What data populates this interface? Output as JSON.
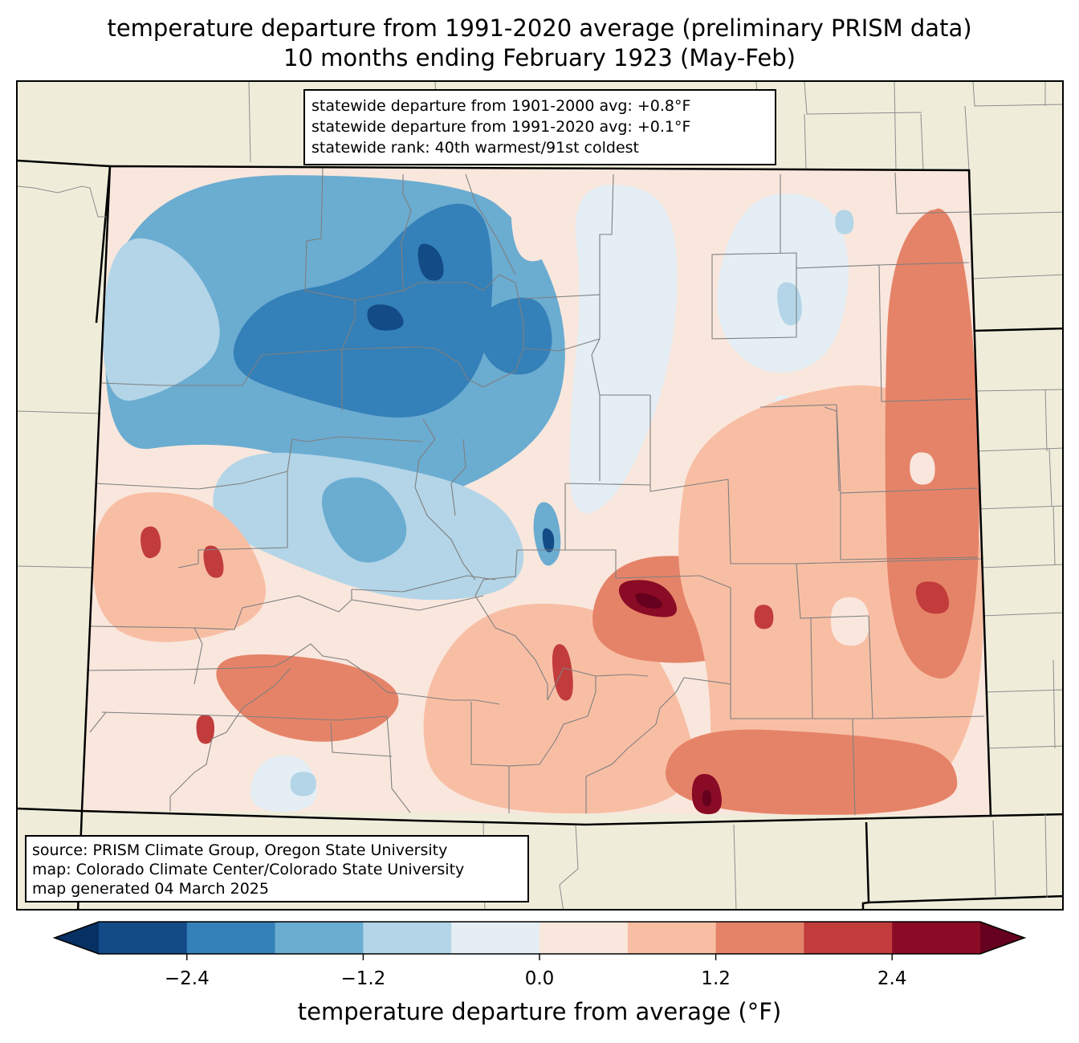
{
  "title": {
    "line1": "temperature departure from 1991-2020 average (preliminary PRISM data)",
    "line2": "10 months ending February 1923 (May-Feb)"
  },
  "stats_box": {
    "lines": [
      "statewide departure from 1901-2000 avg: +0.8°F",
      "statewide departure from 1991-2020 avg: +0.1°F",
      "statewide rank: 40th warmest/91st coldest"
    ]
  },
  "source_box": {
    "lines": [
      "source: PRISM Climate Group, Oregon State University",
      "map: Colorado Climate Center/Colorado State University",
      "map generated 04 March 2025"
    ]
  },
  "colors": {
    "land_background": "#efedda",
    "state_border": "#000000",
    "county_border": "#808080"
  },
  "chart_data": {
    "type": "heatmap",
    "title": "temperature departure from 1991-2020 average (preliminary PRISM data)",
    "subtitle": "10 months ending February 1923 (May-Feb)",
    "region": "Colorado",
    "extent": {
      "lon": [
        -109.05,
        -102.05
      ],
      "lat": [
        37.0,
        41.0
      ]
    },
    "colorbar": {
      "label": "temperature departure from average (°F)",
      "levels": [
        -3.0,
        -2.4,
        -1.8,
        -1.2,
        -0.6,
        0.0,
        0.6,
        1.2,
        1.8,
        2.4,
        3.0
      ],
      "colors": [
        "#134b87",
        "#3480b9",
        "#6bacd1",
        "#b3d5e7",
        "#e4eef4",
        "#f9e7dd",
        "#f8bea4",
        "#e58368",
        "#c23c3c",
        "#8a0b25"
      ],
      "under_color": "#073064",
      "over_color": "#65001e",
      "extend": "both",
      "ticks": [
        -2.4,
        -1.2,
        0.0,
        1.2,
        2.4
      ],
      "tick_labels": [
        "−2.4",
        "−1.2",
        "0.0",
        "1.2",
        "2.4"
      ]
    },
    "base_class": 5,
    "regions": [
      {
        "name": "northwest-cold",
        "class": 2,
        "pts": [
          [
            -109.0,
            40.95
          ],
          [
            -106.2,
            40.95
          ],
          [
            -105.6,
            40.6
          ],
          [
            -105.3,
            40.0
          ],
          [
            -105.4,
            39.4
          ],
          [
            -106.1,
            39.0
          ],
          [
            -107.0,
            38.85
          ],
          [
            -107.4,
            39.2
          ],
          [
            -108.2,
            39.3
          ],
          [
            -109.05,
            39.2
          ]
        ]
      },
      {
        "name": "nw-light-blue-west",
        "class": 3,
        "pts": [
          [
            -109.05,
            40.6
          ],
          [
            -108.4,
            40.5
          ],
          [
            -108.0,
            39.9
          ],
          [
            -108.5,
            39.6
          ],
          [
            -109.05,
            39.5
          ]
        ]
      },
      {
        "name": "northwest-deeper",
        "class": 1,
        "pts": [
          [
            -107.8,
            40.2
          ],
          [
            -107.0,
            40.3
          ],
          [
            -106.5,
            40.75
          ],
          [
            -106.0,
            40.8
          ],
          [
            -105.9,
            40.3
          ],
          [
            -106.0,
            39.7
          ],
          [
            -106.5,
            39.4
          ],
          [
            -107.4,
            39.55
          ],
          [
            -108.1,
            39.75
          ]
        ]
      },
      {
        "name": "routt-core",
        "class": 0,
        "pts": [
          [
            -106.55,
            40.55
          ],
          [
            -106.35,
            40.5
          ],
          [
            -106.3,
            40.3
          ],
          [
            -106.5,
            40.3
          ]
        ]
      },
      {
        "name": "grand-core",
        "class": 0,
        "pts": [
          [
            -106.95,
            40.15
          ],
          [
            -106.7,
            40.15
          ],
          [
            -106.6,
            40.0
          ],
          [
            -106.9,
            39.98
          ]
        ]
      },
      {
        "name": "boulder-gilpin-core",
        "class": 0,
        "pts": [
          [
            -105.8,
            40.05
          ],
          [
            -105.55,
            40.1
          ],
          [
            -105.45,
            39.9
          ],
          [
            -105.7,
            39.82
          ]
        ]
      },
      {
        "name": "boulder-gilpin-mid",
        "class": 1,
        "pts": [
          [
            -106.1,
            40.1
          ],
          [
            -105.55,
            40.25
          ],
          [
            -105.4,
            39.9
          ],
          [
            -105.6,
            39.7
          ],
          [
            -105.95,
            39.75
          ]
        ]
      },
      {
        "name": "larimer-warm-spot",
        "class": 6,
        "pts": [
          [
            -105.7,
            40.75
          ],
          [
            -105.55,
            40.75
          ],
          [
            -105.55,
            40.6
          ],
          [
            -105.7,
            40.6
          ]
        ]
      },
      {
        "name": "larimer-light",
        "class": 5,
        "pts": [
          [
            -105.8,
            40.95
          ],
          [
            -105.45,
            40.95
          ],
          [
            -105.4,
            40.45
          ],
          [
            -105.75,
            40.4
          ]
        ]
      },
      {
        "name": "central-mtn-cold",
        "class": 3,
        "pts": [
          [
            -108.0,
            39.25
          ],
          [
            -107.0,
            39.2
          ],
          [
            -105.9,
            39.0
          ],
          [
            -105.6,
            38.6
          ],
          [
            -105.8,
            38.35
          ],
          [
            -106.6,
            38.3
          ],
          [
            -107.4,
            38.5
          ],
          [
            -108.2,
            38.8
          ]
        ]
      },
      {
        "name": "gunnison-cold",
        "class": 2,
        "pts": [
          [
            -107.3,
            39.05
          ],
          [
            -106.8,
            39.1
          ],
          [
            -106.5,
            38.7
          ],
          [
            -106.9,
            38.5
          ],
          [
            -107.2,
            38.7
          ]
        ]
      },
      {
        "name": "teller-park-cold",
        "class": 2,
        "pts": [
          [
            -105.55,
            38.95
          ],
          [
            -105.4,
            38.9
          ],
          [
            -105.35,
            38.6
          ],
          [
            -105.5,
            38.5
          ],
          [
            -105.6,
            38.75
          ]
        ]
      },
      {
        "name": "teller-park-core",
        "class": 0,
        "pts": [
          [
            -105.52,
            38.78
          ],
          [
            -105.42,
            38.75
          ],
          [
            -105.42,
            38.62
          ],
          [
            -105.5,
            38.62
          ]
        ]
      },
      {
        "name": "front-range-light-blue",
        "class": 4,
        "pts": [
          [
            -105.3,
            40.9
          ],
          [
            -104.6,
            40.9
          ],
          [
            -104.4,
            40.5
          ],
          [
            -104.5,
            39.7
          ],
          [
            -104.9,
            38.95
          ],
          [
            -105.3,
            38.8
          ],
          [
            -105.3,
            39.5
          ],
          [
            -105.2,
            40.2
          ]
        ]
      },
      {
        "name": "ne-plains-light-blue",
        "class": 4,
        "pts": [
          [
            -103.9,
            40.85
          ],
          [
            -103.2,
            40.85
          ],
          [
            -103.0,
            40.4
          ],
          [
            -103.2,
            39.8
          ],
          [
            -103.8,
            39.7
          ],
          [
            -104.2,
            40.1
          ]
        ]
      },
      {
        "name": "washington-blue-spot",
        "class": 3,
        "pts": [
          [
            -103.65,
            40.3
          ],
          [
            -103.45,
            40.3
          ],
          [
            -103.42,
            40.05
          ],
          [
            -103.6,
            40.02
          ]
        ]
      },
      {
        "name": "logan-blue-spot",
        "class": 3,
        "pts": [
          [
            -103.15,
            40.75
          ],
          [
            -103.0,
            40.75
          ],
          [
            -103.0,
            40.6
          ],
          [
            -103.15,
            40.6
          ]
        ]
      },
      {
        "name": "lincoln-light-blue",
        "class": 4,
        "pts": [
          [
            -103.7,
            39.6
          ],
          [
            -103.5,
            39.6
          ],
          [
            -103.5,
            39.25
          ],
          [
            -103.7,
            39.25
          ]
        ]
      },
      {
        "name": "sw-warm-1",
        "class": 6,
        "pts": [
          [
            -109.05,
            38.95
          ],
          [
            -108.3,
            39.0
          ],
          [
            -107.8,
            38.7
          ],
          [
            -107.6,
            38.2
          ],
          [
            -108.5,
            38.0
          ],
          [
            -109.05,
            38.2
          ]
        ]
      },
      {
        "name": "mesa-hot-1",
        "class": 8,
        "pts": [
          [
            -108.7,
            38.75
          ],
          [
            -108.55,
            38.78
          ],
          [
            -108.5,
            38.6
          ],
          [
            -108.65,
            38.55
          ]
        ]
      },
      {
        "name": "mesa-hot-2",
        "class": 8,
        "pts": [
          [
            -108.2,
            38.65
          ],
          [
            -108.05,
            38.65
          ],
          [
            -108.0,
            38.45
          ],
          [
            -108.15,
            38.45
          ]
        ]
      },
      {
        "name": "san-juan-warm",
        "class": 7,
        "pts": [
          [
            -108.2,
            38.0
          ],
          [
            -107.0,
            37.95
          ],
          [
            -106.5,
            37.7
          ],
          [
            -107.0,
            37.4
          ],
          [
            -107.8,
            37.5
          ]
        ]
      },
      {
        "name": "la-plata-hot",
        "class": 8,
        "pts": [
          [
            -108.2,
            37.6
          ],
          [
            -108.05,
            37.6
          ],
          [
            -108.05,
            37.42
          ],
          [
            -108.18,
            37.42
          ]
        ]
      },
      {
        "name": "south-cool-1",
        "class": 4,
        "pts": [
          [
            -107.7,
            37.35
          ],
          [
            -107.3,
            37.35
          ],
          [
            -107.2,
            37.0
          ],
          [
            -107.8,
            37.0
          ]
        ]
      },
      {
        "name": "south-cool-2",
        "class": 3,
        "pts": [
          [
            -107.45,
            37.25
          ],
          [
            -107.25,
            37.25
          ],
          [
            -107.25,
            37.1
          ],
          [
            -107.45,
            37.1
          ]
        ]
      },
      {
        "name": "south-central-warm",
        "class": 6,
        "pts": [
          [
            -106.0,
            38.3
          ],
          [
            -105.0,
            38.3
          ],
          [
            -104.5,
            37.9
          ],
          [
            -104.2,
            37.0
          ],
          [
            -106.3,
            37.0
          ],
          [
            -106.5,
            37.7
          ]
        ]
      },
      {
        "name": "custer-huerfano-warm",
        "class": 8,
        "pts": [
          [
            -105.45,
            38.05
          ],
          [
            -105.3,
            38.05
          ],
          [
            -105.25,
            37.7
          ],
          [
            -105.4,
            37.7
          ]
        ]
      },
      {
        "name": "pueblo-warm",
        "class": 7,
        "pts": [
          [
            -105.0,
            38.6
          ],
          [
            -104.0,
            38.6
          ],
          [
            -103.6,
            38.2
          ],
          [
            -104.2,
            37.9
          ],
          [
            -105.2,
            38.0
          ]
        ]
      },
      {
        "name": "pueblo-hot",
        "class": 9,
        "pts": [
          [
            -104.95,
            38.45
          ],
          [
            -104.55,
            38.45
          ],
          [
            -104.4,
            38.2
          ],
          [
            -104.85,
            38.25
          ]
        ]
      },
      {
        "name": "pueblo-core",
        "class": 10,
        "pts": [
          [
            -104.8,
            38.38
          ],
          [
            -104.6,
            38.35
          ],
          [
            -104.55,
            38.27
          ],
          [
            -104.75,
            38.28
          ]
        ]
      },
      {
        "name": "east-plains-warm",
        "class": 6,
        "pts": [
          [
            -104.3,
            39.5
          ],
          [
            -102.05,
            39.8
          ],
          [
            -102.05,
            37.0
          ],
          [
            -104.2,
            37.0
          ],
          [
            -104.2,
            38.0
          ],
          [
            -104.5,
            38.5
          ]
        ]
      },
      {
        "name": "east-border-warm",
        "class": 7,
        "pts": [
          [
            -102.7,
            40.6
          ],
          [
            -102.05,
            40.9
          ],
          [
            -102.05,
            37.8
          ],
          [
            -102.8,
            37.9
          ],
          [
            -102.8,
            39.4
          ]
        ]
      },
      {
        "name": "kiowa-hot",
        "class": 8,
        "pts": [
          [
            -102.6,
            38.45
          ],
          [
            -102.35,
            38.45
          ],
          [
            -102.3,
            38.25
          ],
          [
            -102.55,
            38.25
          ]
        ]
      },
      {
        "name": "otero-hot",
        "class": 8,
        "pts": [
          [
            -103.85,
            38.3
          ],
          [
            -103.7,
            38.3
          ],
          [
            -103.7,
            38.15
          ],
          [
            -103.85,
            38.15
          ]
        ]
      },
      {
        "name": "se-border-warm",
        "class": 7,
        "pts": [
          [
            -104.5,
            37.55
          ],
          [
            -103.0,
            37.5
          ],
          [
            -102.3,
            37.4
          ],
          [
            -102.3,
            37.0
          ],
          [
            -104.6,
            37.0
          ]
        ]
      },
      {
        "name": "las-animas-hot",
        "class": 9,
        "pts": [
          [
            -104.35,
            37.25
          ],
          [
            -104.15,
            37.25
          ],
          [
            -104.1,
            37.0
          ],
          [
            -104.35,
            37.0
          ]
        ]
      },
      {
        "name": "las-animas-core",
        "class": 10,
        "pts": [
          [
            -104.27,
            37.15
          ],
          [
            -104.2,
            37.15
          ],
          [
            -104.2,
            37.05
          ],
          [
            -104.27,
            37.05
          ]
        ]
      },
      {
        "name": "bent-pale-spot",
        "class": 5,
        "pts": [
          [
            -103.25,
            38.35
          ],
          [
            -102.95,
            38.35
          ],
          [
            -102.95,
            38.05
          ],
          [
            -103.25,
            38.05
          ]
        ]
      },
      {
        "name": "kit-carson-pale-spot",
        "class": 5,
        "pts": [
          [
            -102.6,
            39.25
          ],
          [
            -102.4,
            39.25
          ],
          [
            -102.4,
            39.05
          ],
          [
            -102.6,
            39.05
          ]
        ]
      },
      {
        "name": "ne-pale-spot",
        "class": 5,
        "pts": [
          [
            -102.55,
            40.95
          ],
          [
            -102.25,
            40.95
          ],
          [
            -102.25,
            40.75
          ],
          [
            -102.55,
            40.75
          ]
        ]
      }
    ]
  }
}
